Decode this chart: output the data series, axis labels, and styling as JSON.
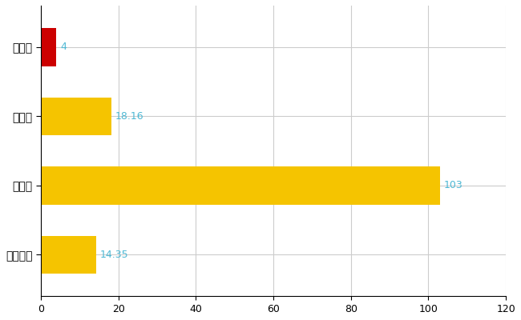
{
  "categories": [
    "穴水町",
    "県平均",
    "県最大",
    "全国平均"
  ],
  "values": [
    4,
    18.16,
    103,
    14.35
  ],
  "bar_colors": [
    "#cc0000",
    "#f5c400",
    "#f5c400",
    "#f5c400"
  ],
  "value_labels": [
    "4",
    "18.16",
    "103",
    "14.35"
  ],
  "label_color": "#4db8d4",
  "xlim": [
    0,
    120
  ],
  "xticks": [
    0,
    20,
    40,
    60,
    80,
    100,
    120
  ],
  "grid_color": "#cccccc",
  "background_color": "#ffffff",
  "bar_height": 0.55
}
